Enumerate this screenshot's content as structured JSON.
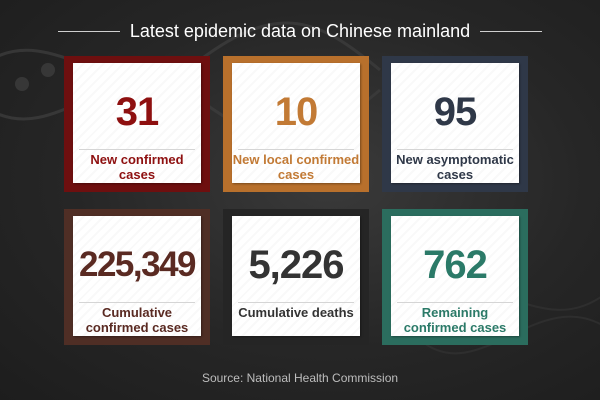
{
  "header": {
    "title": "Latest epidemic data on Chinese mainland"
  },
  "colors": {
    "dark_red": "#6e0f0f",
    "orange": "#b8702c",
    "slate": "#2f3848",
    "brown": "#4f2e25",
    "dark_gray": "#2a2a2a",
    "teal": "#2b6d5e"
  },
  "cards": [
    {
      "value": "31",
      "label": "New confirmed cases",
      "color": "#8e1010",
      "frame": "#6e0f0f"
    },
    {
      "value": "10",
      "label": "New local confirmed cases",
      "color": "#c27a35",
      "frame": "#b8702c"
    },
    {
      "value": "95",
      "label": "New asymptomatic cases",
      "color": "#2f3848",
      "frame": "#2f3848"
    },
    {
      "value": "225,349",
      "label": "Cumulative confirmed cases",
      "color": "#5a2a22",
      "frame": "#4f2e25"
    },
    {
      "value": "5,226",
      "label": "Cumulative deaths",
      "color": "#333333",
      "frame": "#252525"
    },
    {
      "value": "762",
      "label": "Remaining confirmed cases",
      "color": "#2b7a68",
      "frame": "#2b6d5e"
    }
  ],
  "footer": {
    "source": "Source: National Health Commission"
  }
}
